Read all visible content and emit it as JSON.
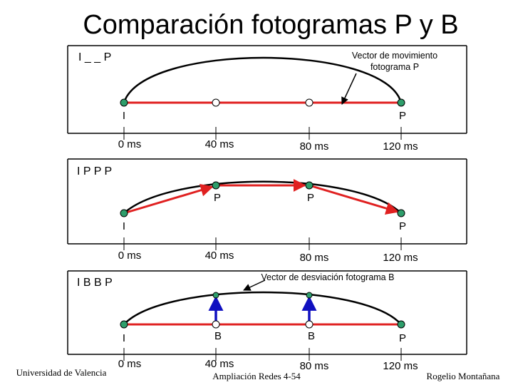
{
  "title": "Comparación fotogramas P y B",
  "colors": {
    "axis": "#000000",
    "frame_fill": "#2e9e6b",
    "frame_marker_x": "#cc0000",
    "p_vector": "#e02020",
    "b_vector": "#1010c0"
  },
  "time_labels": [
    "0 ms",
    "40 ms",
    "80 ms",
    "120 ms"
  ],
  "panel1": {
    "label": "I _ _ P",
    "frame_labels": [
      "I",
      "P"
    ],
    "callout": {
      "line1": "Vector de movimiento",
      "line2": "fotograma P"
    }
  },
  "panel2": {
    "label": "I P P P",
    "frame_labels": [
      "I",
      "P",
      "P",
      "P"
    ]
  },
  "panel3": {
    "label": "I B B P",
    "frame_labels": [
      "I",
      "B",
      "B",
      "P"
    ],
    "callout": {
      "line1": "Vector de desviación fotograma B"
    }
  },
  "footer": {
    "left": "Universidad de Valencia",
    "center": "Ampliación Redes 4-54",
    "right": "Rogelio Montañana"
  }
}
